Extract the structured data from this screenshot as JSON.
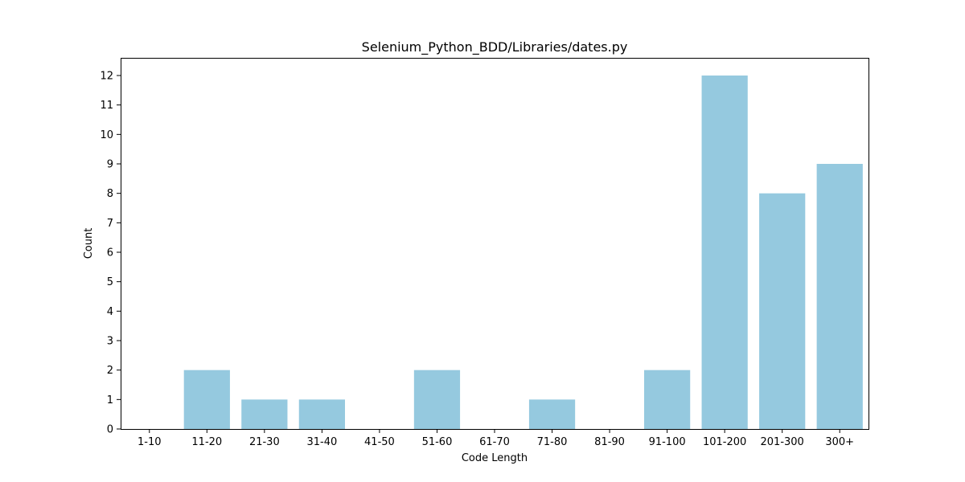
{
  "chart_data": {
    "type": "bar",
    "title": "Selenium_Python_BDD/Libraries/dates.py",
    "xlabel": "Code Length",
    "ylabel": "Count",
    "categories": [
      "1-10",
      "11-20",
      "21-30",
      "31-40",
      "41-50",
      "51-60",
      "61-70",
      "71-80",
      "81-90",
      "91-100",
      "101-200",
      "201-300",
      "300+"
    ],
    "values": [
      0,
      2,
      1,
      1,
      0,
      2,
      0,
      1,
      0,
      2,
      12,
      8,
      9
    ],
    "ylim": [
      0,
      12.6
    ],
    "yticks": [
      "0",
      "1",
      "2",
      "3",
      "4",
      "5",
      "6",
      "7",
      "8",
      "9",
      "10",
      "11",
      "12"
    ],
    "bar_color": "#95c9df",
    "grid": false,
    "legend": "none"
  }
}
